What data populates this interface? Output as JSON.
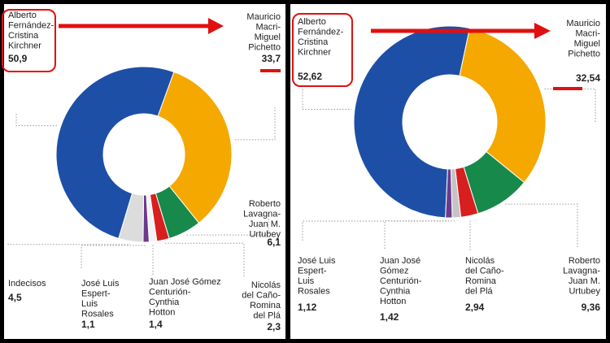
{
  "chart_data": [
    {
      "type": "donut",
      "categories": [
        [
          "Alberto",
          "Fernández-",
          "Cristina",
          "Kirchner"
        ],
        [
          "Mauricio",
          "Macri-",
          "Miguel",
          "Pichetto"
        ],
        [
          "Roberto",
          "Lavagna-",
          "Juan M.",
          "Urtubey"
        ],
        [
          "Nicolás",
          "del Caño-",
          "Romina",
          "del Plá"
        ],
        [
          "Juan José Gómez",
          "Centurión-",
          "Cynthia",
          "Hotton"
        ],
        [
          "José Luis",
          "Espert-",
          "Luis",
          "Rosales"
        ],
        [
          "Indecisos"
        ]
      ],
      "values": [
        50.9,
        33.7,
        6.1,
        2.3,
        1.4,
        1.1,
        4.5
      ],
      "value_labels": [
        "50,9",
        "33,7",
        "6,1",
        "2,3",
        "1,4",
        "1,1",
        "4,5"
      ],
      "colors": [
        "#1d4fa6",
        "#f5a800",
        "#17894a",
        "#d71f1f",
        "#f2f2f2",
        "#6a3b8c",
        "#dcdcdc"
      ]
    },
    {
      "type": "donut",
      "categories": [
        [
          "Alberto",
          "Fernández-",
          "Cristina",
          "Kirchner"
        ],
        [
          "Mauricio",
          "Macri-",
          "Miguel",
          "Pichetto"
        ],
        [
          "Roberto",
          "Lavagna-",
          "Juan M.",
          "Urtubey"
        ],
        [
          "Nicolás",
          "del Caño-",
          "Romina",
          "del Plá"
        ],
        [
          "Juan José",
          "Gómez",
          "Centurión-",
          "Cynthia",
          "Hotton"
        ],
        [
          "José Luis",
          "Espert-",
          "Luis",
          "Rosales"
        ]
      ],
      "values": [
        52.62,
        32.54,
        9.36,
        2.94,
        1.42,
        1.12
      ],
      "value_labels": [
        "52,62",
        "32,54",
        "9,36",
        "2,94",
        "1,42",
        "1,12"
      ],
      "colors": [
        "#1d4fa6",
        "#f5a800",
        "#17894a",
        "#d71f1f",
        "#c4c4c8",
        "#6a3b8c"
      ]
    }
  ]
}
